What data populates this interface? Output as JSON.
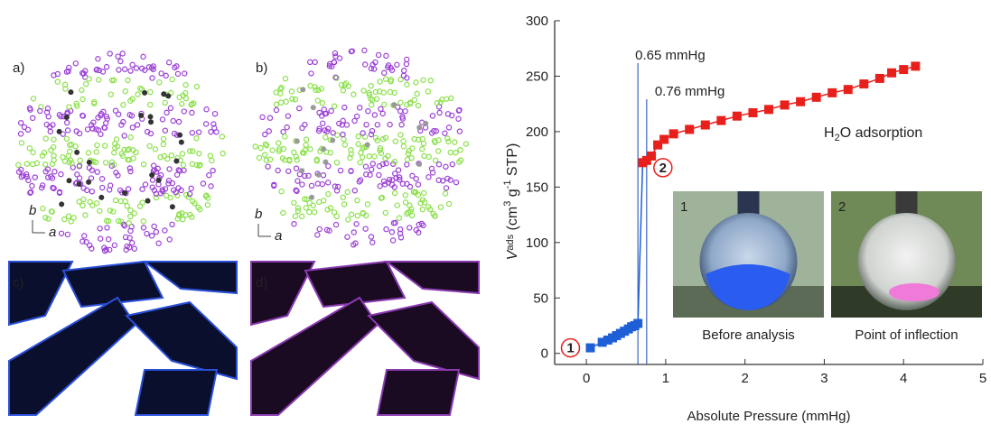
{
  "panels": [
    {
      "label": "a)",
      "axes": [
        "b",
        "a"
      ]
    },
    {
      "label": "b)",
      "axes": [
        "b",
        "a"
      ]
    },
    {
      "label": "c)"
    },
    {
      "label": "d)"
    }
  ],
  "chart_data": {
    "type": "scatter",
    "xlabel": "Absolute Pressure (mmHg)",
    "ylabel": [
      "V",
      "ads",
      " (cm",
      "3",
      " g",
      "-1",
      " STP)"
    ],
    "xlim": [
      -0.4,
      5
    ],
    "ylim": [
      -10,
      300
    ],
    "xticks": [
      0,
      1,
      2,
      3,
      4,
      5
    ],
    "yticks": [
      0,
      50,
      100,
      150,
      200,
      250,
      300
    ],
    "series": [
      {
        "color": "#1f5fd6",
        "x": [
          0.05,
          0.2,
          0.27,
          0.33,
          0.38,
          0.43,
          0.48,
          0.53,
          0.57,
          0.61,
          0.65
        ],
        "values": [
          5,
          10,
          12,
          14,
          16,
          18,
          20,
          22,
          24,
          25,
          27
        ]
      },
      {
        "color": "#e8201c",
        "x": [
          0.71,
          0.76,
          0.82,
          0.9,
          0.98,
          1.1,
          1.3,
          1.5,
          1.7,
          1.9,
          2.1,
          2.3,
          2.5,
          2.7,
          2.9,
          3.1,
          3.3,
          3.5,
          3.7,
          3.85,
          4.0,
          4.15
        ],
        "values": [
          172,
          174,
          178,
          188,
          193,
          198,
          202,
          206,
          210,
          214,
          217,
          220,
          224,
          227,
          231,
          235,
          238,
          243,
          248,
          253,
          256,
          259
        ]
      }
    ],
    "vlines": [
      {
        "x": 0.65,
        "label": "0.65 mmHg",
        "color": "#3b63c4"
      },
      {
        "x": 0.76,
        "label": "0.76 mmHg",
        "color": "#3b63c4"
      }
    ],
    "series_label": [
      "H",
      "2",
      "O adsorption"
    ],
    "point_markers": [
      "1",
      "2"
    ],
    "insets": [
      {
        "number": "1",
        "caption": "Before analysis"
      },
      {
        "number": "2",
        "caption": "Point of inflection"
      }
    ]
  }
}
